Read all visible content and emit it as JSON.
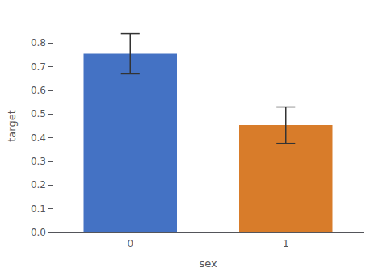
{
  "chart_data": {
    "type": "bar",
    "categories": [
      "0",
      "1"
    ],
    "values": [
      0.755,
      0.453
    ],
    "errors": [
      0.085,
      0.077
    ],
    "colors": [
      "#4472c4",
      "#d87c2a"
    ],
    "xlabel": "sex",
    "ylabel": "target",
    "ylim": [
      0.0,
      0.9
    ],
    "yticks": [
      {
        "value": 0.0,
        "label": "0.0"
      },
      0.1,
      0.2,
      0.3,
      0.4,
      0.5,
      0.6,
      0.7,
      0.8
    ],
    "grid": false
  }
}
